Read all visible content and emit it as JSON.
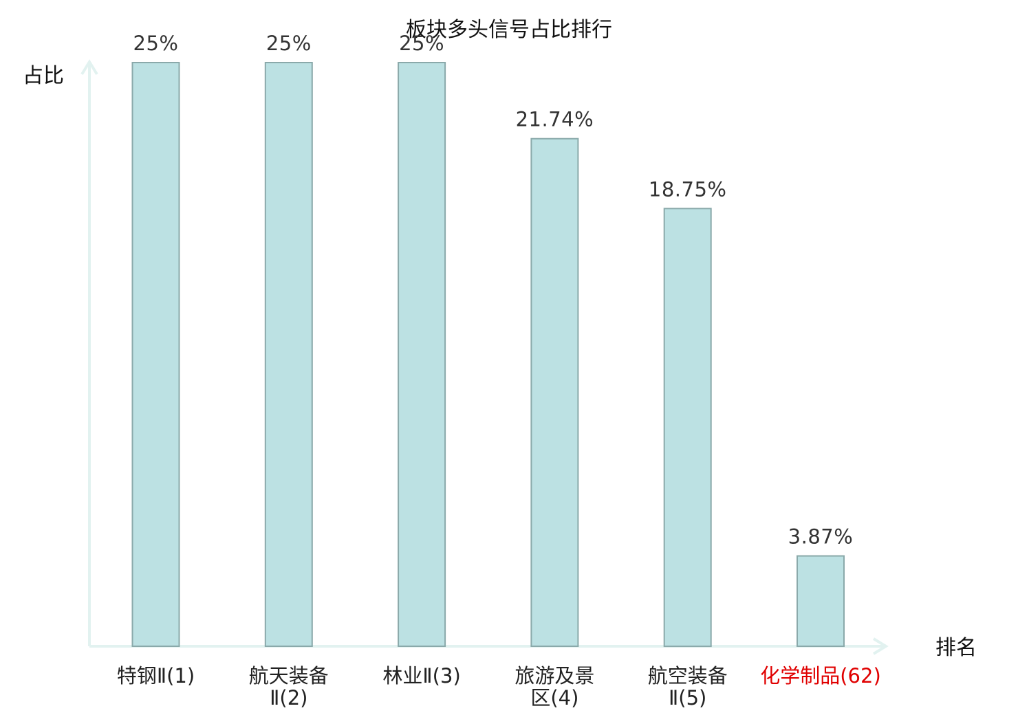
{
  "chart_data": {
    "type": "bar",
    "title": "板块多头信号占比排行",
    "ylabel": "占比",
    "xlabel": "排名",
    "categories": [
      [
        "特钢Ⅱ(1)"
      ],
      [
        "航天装备",
        "Ⅱ(2)"
      ],
      [
        "林业Ⅱ(3)"
      ],
      [
        "旅游及景",
        "区(4)"
      ],
      [
        "航空装备",
        "Ⅱ(5)"
      ],
      [
        "化学制品(62)"
      ]
    ],
    "values": [
      25,
      25,
      25,
      21.74,
      18.75,
      3.87
    ],
    "data_labels": [
      "25%",
      "25%",
      "25%",
      "21.74%",
      "18.75%",
      "3.87%"
    ],
    "ylim": [
      0,
      25
    ],
    "grid": false,
    "highlight_index": 5,
    "colors": {
      "bar_fill": "#bce1e3",
      "bar_stroke": "#8aa9aa",
      "axis": "#e2f2f0",
      "highlight_text": "#e00000"
    }
  }
}
